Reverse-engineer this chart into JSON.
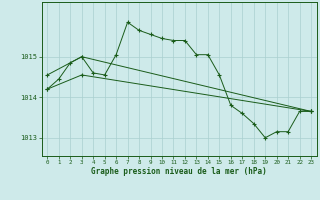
{
  "background_color": "#ceeaea",
  "grid_color": "#aacfcf",
  "line_color": "#1a5c1a",
  "xlabel": "Graphe pression niveau de la mer (hPa)",
  "xlim": [
    -0.5,
    23.5
  ],
  "ylim": [
    1012.55,
    1016.35
  ],
  "yticks": [
    1013,
    1014,
    1015
  ],
  "xticks": [
    0,
    1,
    2,
    3,
    4,
    5,
    6,
    7,
    8,
    9,
    10,
    11,
    12,
    13,
    14,
    15,
    16,
    17,
    18,
    19,
    20,
    21,
    22,
    23
  ],
  "series1": {
    "x": [
      0,
      1,
      2,
      3,
      4,
      5,
      6,
      7,
      8,
      9,
      10,
      11,
      12,
      13,
      14,
      15,
      16,
      17,
      18,
      19,
      20,
      21,
      22,
      23
    ],
    "y": [
      1014.2,
      1014.45,
      1014.85,
      1015.0,
      1014.6,
      1014.55,
      1015.05,
      1015.85,
      1015.65,
      1015.55,
      1015.45,
      1015.4,
      1015.4,
      1015.05,
      1015.05,
      1014.55,
      1013.8,
      1013.6,
      1013.35,
      1013.0,
      1013.15,
      1013.15,
      1013.65,
      1013.65
    ]
  },
  "series2": {
    "x": [
      0,
      3,
      23
    ],
    "y": [
      1014.55,
      1015.0,
      1013.65
    ]
  },
  "series3": {
    "x": [
      0,
      3,
      23
    ],
    "y": [
      1014.2,
      1014.55,
      1013.65
    ]
  }
}
